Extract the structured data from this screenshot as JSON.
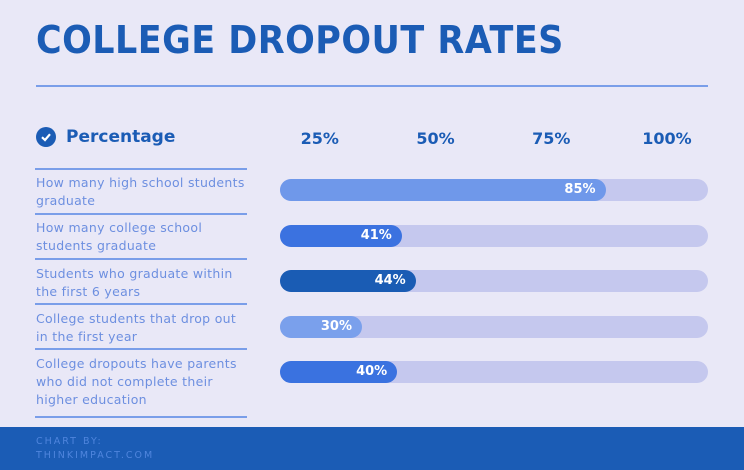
{
  "chart_data": {
    "type": "bar",
    "orientation": "horizontal",
    "title": "COLLEGE DROPOUT RATES",
    "legend": "Percentage",
    "legend_placement": "top-left",
    "tick_labels": [
      "25%",
      "50%",
      "75%",
      "100%"
    ],
    "categories": [
      "How many high school students graduate",
      "How many college school students graduate",
      "Students who graduate within the first 6 years",
      "College students that drop out in the first year",
      "College dropouts have parents who did not complete their higher education"
    ],
    "values": [
      85,
      41,
      44,
      30,
      40
    ],
    "value_labels": [
      "85%",
      "41%",
      "44%",
      "30%",
      "40%"
    ],
    "bar_colors": [
      "#6f98ea",
      "#3b72e0",
      "#1a5cb4",
      "#7aa0ec",
      "#3a72e0"
    ],
    "track_color": "#c5c8ee"
  },
  "footer": {
    "line1": "CHART BY:",
    "line2": "THINKIMPACT.COM"
  },
  "colors": {
    "accent": "#1b5cb5",
    "background": "#e9e8f7"
  }
}
